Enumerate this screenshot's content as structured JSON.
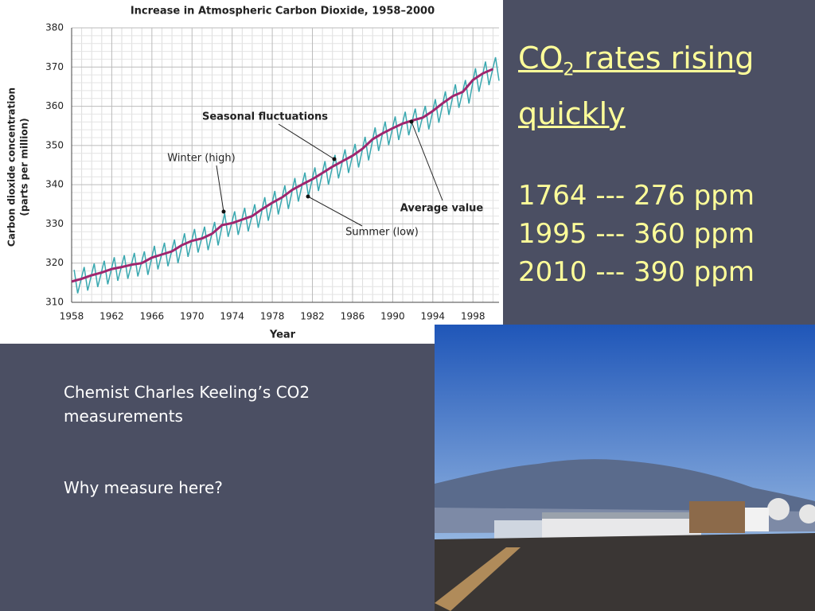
{
  "chart_data": {
    "type": "line",
    "title": "Increase in Atmospheric Carbon Dioxide, 1958–2000",
    "y_label_lines": [
      "Carbon dioxide concentration",
      "(parts per million)"
    ],
    "x_label": "Year",
    "xlim": [
      1958,
      2000.6
    ],
    "xticks": [
      1958,
      1962,
      1966,
      1970,
      1974,
      1978,
      1982,
      1986,
      1990,
      1994,
      1998
    ],
    "ylim": [
      310,
      380
    ],
    "yticks": [
      310,
      320,
      330,
      340,
      350,
      360,
      370,
      380
    ],
    "grid": true,
    "series": [
      {
        "name": "Seasonal fluctuations",
        "color": "#3aa8b0",
        "x": [
          1958.25,
          1958.6,
          1959.25,
          1959.6,
          1960.25,
          1960.6,
          1961.25,
          1961.6,
          1962.25,
          1962.6,
          1963.25,
          1963.6,
          1964.25,
          1964.6,
          1965.25,
          1965.6,
          1966.25,
          1966.6,
          1967.25,
          1967.6,
          1968.25,
          1968.6,
          1969.25,
          1969.6,
          1970.25,
          1970.6,
          1971.25,
          1971.6,
          1972.25,
          1972.6,
          1973.25,
          1973.6,
          1974.25,
          1974.6,
          1975.25,
          1975.6,
          1976.25,
          1976.6,
          1977.25,
          1977.6,
          1978.25,
          1978.6,
          1979.25,
          1979.6,
          1980.25,
          1980.6,
          1981.25,
          1981.6,
          1982.25,
          1982.6,
          1983.25,
          1983.6,
          1984.25,
          1984.6,
          1985.25,
          1985.6,
          1986.25,
          1986.6,
          1987.25,
          1987.6,
          1988.25,
          1988.6,
          1989.25,
          1989.6,
          1990.25,
          1990.6,
          1991.25,
          1991.6,
          1992.25,
          1992.6,
          1993.25,
          1993.6,
          1994.25,
          1994.6,
          1995.25,
          1995.6,
          1996.25,
          1996.6,
          1997.25,
          1997.6,
          1998.25,
          1998.6,
          1999.25,
          1999.6,
          2000.25,
          2000.6
        ],
        "values": [
          318.3,
          312.3,
          319.0,
          313.0,
          319.9,
          313.9,
          320.6,
          314.6,
          321.5,
          315.5,
          322.0,
          316.0,
          322.6,
          316.6,
          323.0,
          317.0,
          324.4,
          318.4,
          325.2,
          319.2,
          326.0,
          320.0,
          327.6,
          321.6,
          328.7,
          322.7,
          329.3,
          323.3,
          330.5,
          324.5,
          332.7,
          326.7,
          333.2,
          327.2,
          334.1,
          328.1,
          335.0,
          329.0,
          336.8,
          330.8,
          338.4,
          332.4,
          339.8,
          333.8,
          341.7,
          335.7,
          343.1,
          337.1,
          344.4,
          338.4,
          346.0,
          340.0,
          347.6,
          341.6,
          349.0,
          343.0,
          350.4,
          344.4,
          352.2,
          346.2,
          354.6,
          348.6,
          356.1,
          350.1,
          357.4,
          351.4,
          358.6,
          352.6,
          359.4,
          353.4,
          360.1,
          354.1,
          361.8,
          355.8,
          363.8,
          357.8,
          365.6,
          359.6,
          366.7,
          360.7,
          369.7,
          363.7,
          371.4,
          365.4,
          372.5,
          366.5
        ]
      },
      {
        "name": "Average value",
        "color": "#a0266e",
        "x": [
          1958,
          1959,
          1960,
          1961,
          1962,
          1963,
          1964,
          1965,
          1966,
          1967,
          1968,
          1969,
          1970,
          1971,
          1972,
          1973,
          1974,
          1975,
          1976,
          1977,
          1978,
          1979,
          1980,
          1981,
          1982,
          1983,
          1984,
          1985,
          1986,
          1987,
          1988,
          1989,
          1990,
          1991,
          1992,
          1993,
          1994,
          1995,
          1996,
          1997,
          1998,
          1999,
          2000
        ],
        "values": [
          315.3,
          316.0,
          316.9,
          317.6,
          318.5,
          319.0,
          319.6,
          320.0,
          321.4,
          322.2,
          323.0,
          324.6,
          325.7,
          326.3,
          327.5,
          329.7,
          330.2,
          331.1,
          332.0,
          333.8,
          335.4,
          336.8,
          338.7,
          340.1,
          341.4,
          343.0,
          344.6,
          346.0,
          347.4,
          349.2,
          351.6,
          353.1,
          354.4,
          355.6,
          356.4,
          357.1,
          358.8,
          360.8,
          362.6,
          363.7,
          366.7,
          368.4,
          369.5
        ]
      }
    ],
    "annotations": [
      "Winter (high)",
      "Summer (low)"
    ]
  },
  "slide": {
    "title": {
      "pre": "CO",
      "sub": "2",
      "post": " rates rising quickly"
    },
    "facts": [
      "1764 --- 276 ppm",
      "1995 --- 360 ppm",
      "2010 --- 390 ppm"
    ],
    "caption": [
      "Chemist Charles Keeling’s CO2 measurements",
      "Why measure here?"
    ]
  }
}
